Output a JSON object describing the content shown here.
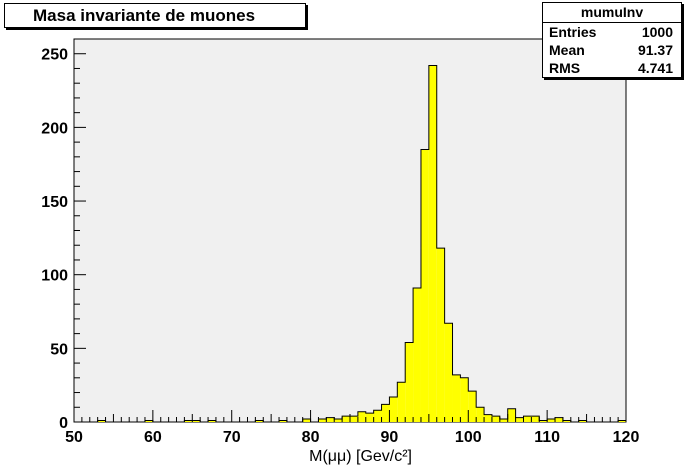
{
  "chart_data": {
    "type": "bar",
    "title": "Masa invariante de muones",
    "xlabel": "M(μμ) [Gev/c²]",
    "ylabel": "",
    "xlim": [
      50,
      120
    ],
    "ylim": [
      0,
      260
    ],
    "xticks": [
      50,
      60,
      70,
      80,
      90,
      100,
      110,
      120
    ],
    "yticks": [
      0,
      50,
      100,
      150,
      200,
      250
    ],
    "bin_width": 1,
    "bin_edges_start": 50,
    "values": [
      0,
      0,
      0,
      1,
      0,
      0,
      0,
      0,
      0,
      1,
      0,
      0,
      0,
      0,
      1,
      1,
      0,
      1,
      0,
      0,
      0,
      0,
      0,
      1,
      0,
      0,
      1,
      0,
      0,
      2,
      0,
      2,
      3,
      2,
      4,
      4,
      7,
      6,
      8,
      12,
      17,
      27,
      54,
      91,
      185,
      242,
      118,
      67,
      32,
      30,
      21,
      10,
      5,
      4,
      2,
      9,
      3,
      4,
      4,
      1,
      2,
      3,
      1,
      0,
      1,
      0,
      0,
      0,
      0,
      1
    ],
    "fill_color": "#ffff00",
    "frame_color": "#f0f0f0",
    "stats": {
      "name": "mumuInv",
      "rows": [
        {
          "label": "Entries",
          "value": "1000"
        },
        {
          "label": "Mean",
          "value": "91.37"
        },
        {
          "label": "RMS",
          "value": "4.741"
        }
      ]
    }
  }
}
